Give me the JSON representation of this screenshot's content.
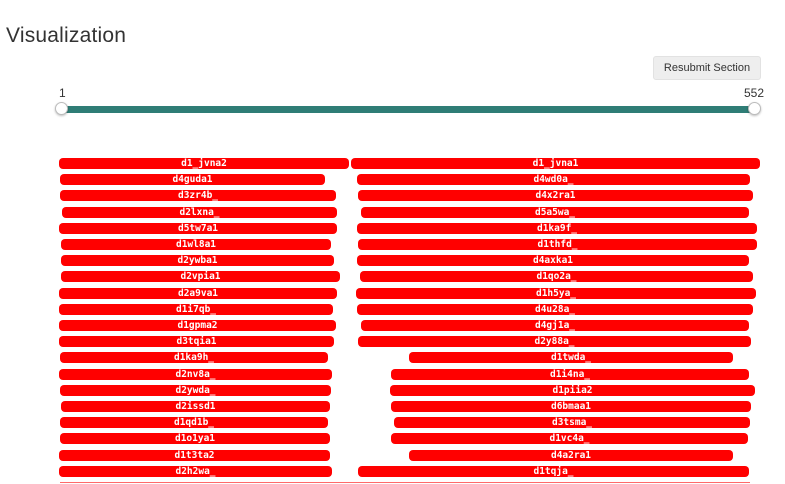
{
  "page": {
    "title": "Visualization"
  },
  "toolbar": {
    "resubmit_label": "Resubmit Section"
  },
  "slider": {
    "min_label": "1",
    "max_label": "552",
    "range_min": 1,
    "range_max": 552,
    "value_low": 1,
    "value_high": 552,
    "fill_color": "#2f7d76"
  },
  "visualization": {
    "bar_color": "#ff0000",
    "left_column": [
      "d1_jvna2",
      "d4guda1",
      "d3zr4b_",
      "d2lxna_",
      "d5tw7a1",
      "d1wl8a1",
      "d2ywba1",
      "d2vpia1",
      "d2a9va1",
      "d1i7qb_",
      "d1gpma2",
      "d3tqia1",
      "d1ka9h_",
      "d2nv8a_",
      "d2ywda_",
      "d2issd1",
      "d1qd1b_",
      "d1o1ya1",
      "d1t3ta2",
      "d2h2wa_"
    ],
    "right_column": [
      "d1_jvna1",
      "d4wd0a_",
      "d4x2ra1",
      "d5a5wa_",
      "d1ka9f_",
      "d1thfd_",
      "d4axka1",
      "d1qo2a_",
      "d1h5ya_",
      "d4u28a_",
      "d4gj1a_",
      "d2y88a_",
      "d1twda_",
      "d1i4na_",
      "d1piia2",
      "d6bmaa1",
      "d3tsma_",
      "d1vc4a_",
      "d4a2ra1",
      "d1tqja_"
    ]
  }
}
